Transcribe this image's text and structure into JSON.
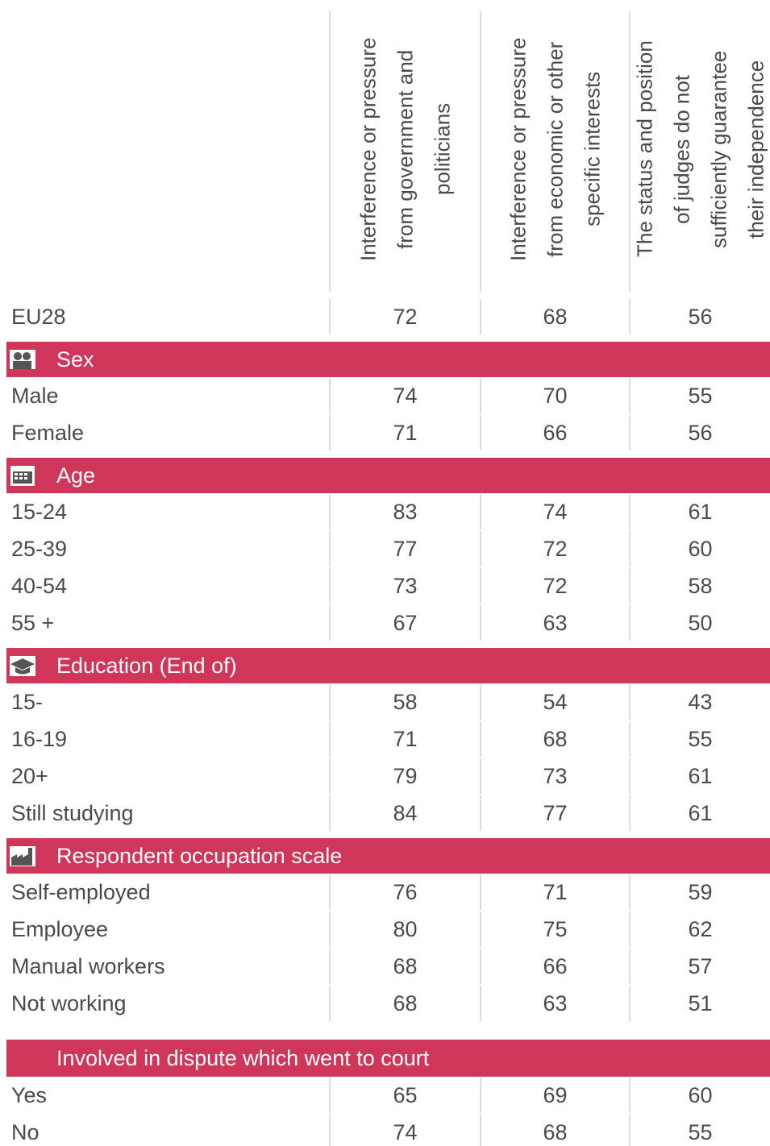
{
  "header": {
    "columns": [
      [
        "Interference or pressure",
        "from government and",
        "politicians"
      ],
      [
        "Interference or pressure",
        "from economic or other",
        "specific interests"
      ],
      [
        "The status and position",
        "of judges do not",
        "sufficiently guarantee",
        "their independence"
      ]
    ]
  },
  "total": {
    "label": "EU28",
    "values": [
      "72",
      "68",
      "56"
    ]
  },
  "sections": [
    {
      "title": "Sex",
      "rows": [
        {
          "label": "Male",
          "values": [
            "74",
            "70",
            "55"
          ]
        },
        {
          "label": "Female",
          "values": [
            "71",
            "66",
            "56"
          ]
        }
      ]
    },
    {
      "title": "Age",
      "rows": [
        {
          "label": "15-24",
          "values": [
            "83",
            "74",
            "61"
          ]
        },
        {
          "label": "25-39",
          "values": [
            "77",
            "72",
            "60"
          ]
        },
        {
          "label": "40-54",
          "values": [
            "73",
            "72",
            "58"
          ]
        },
        {
          "label": "55 +",
          "values": [
            "67",
            "63",
            "50"
          ]
        }
      ]
    },
    {
      "title": "Education (End of)",
      "rows": [
        {
          "label": "15-",
          "values": [
            "58",
            "54",
            "43"
          ]
        },
        {
          "label": "16-19",
          "values": [
            "71",
            "68",
            "55"
          ]
        },
        {
          "label": "20+",
          "values": [
            "79",
            "73",
            "61"
          ]
        },
        {
          "label": "Still studying",
          "values": [
            "84",
            "77",
            "61"
          ]
        }
      ]
    },
    {
      "title": "Respondent occupation scale",
      "rows": [
        {
          "label": "Self-employed",
          "values": [
            "76",
            "71",
            "59"
          ]
        },
        {
          "label": "Employee",
          "values": [
            "80",
            "75",
            "62"
          ]
        },
        {
          "label": "Manual workers",
          "values": [
            "68",
            "66",
            "57"
          ]
        },
        {
          "label": "Not working",
          "values": [
            "68",
            "63",
            "51"
          ]
        }
      ]
    },
    {
      "title": "Involved in dispute which went to court",
      "rows": [
        {
          "label": "Yes",
          "values": [
            "65",
            "69",
            "60"
          ]
        },
        {
          "label": "No",
          "values": [
            "74",
            "68",
            "55"
          ]
        }
      ]
    }
  ]
}
